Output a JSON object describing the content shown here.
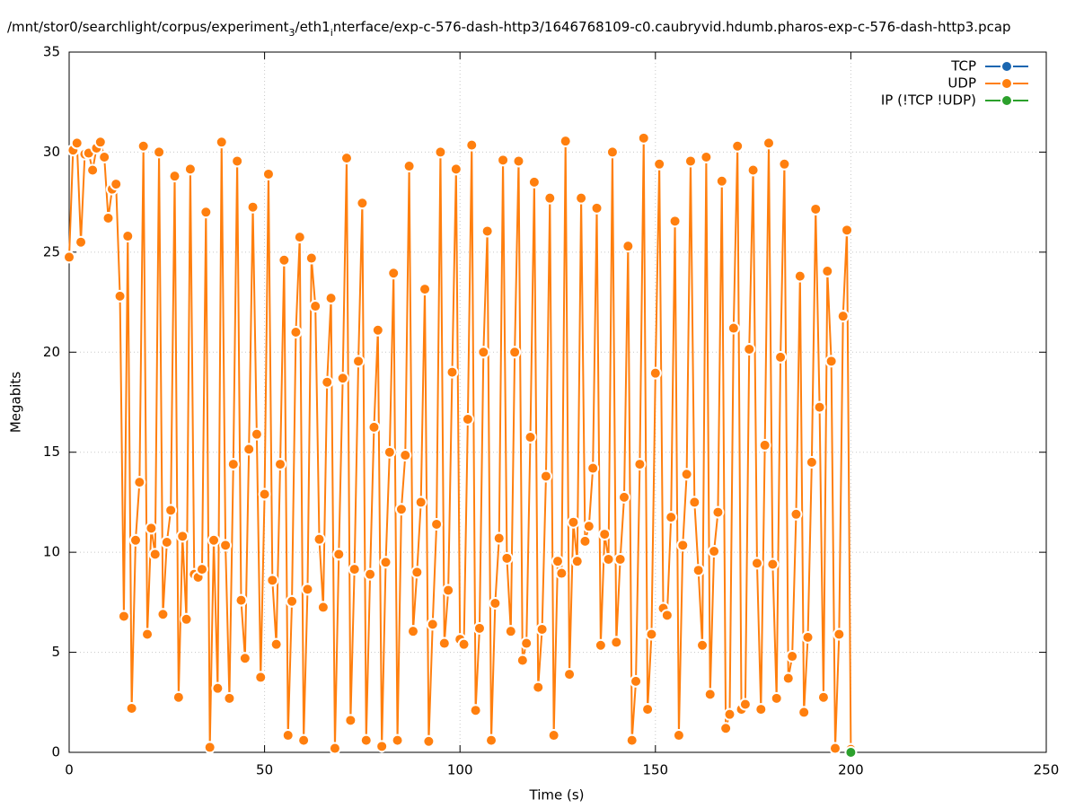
{
  "chart_data": {
    "type": "line",
    "title": [
      "/mnt/stor0/searchlight/corpus/experiment",
      "3",
      "/eth1",
      "i",
      "nterface/exp-c-576-dash-http3/1646768109-c0.caubryvid.hdumb.pharos-exp-c-576-dash-http3.pcap"
    ],
    "x_label": "Time (s)",
    "y_label": "Megabits",
    "xlim": [
      0,
      250
    ],
    "ylim": [
      0,
      35
    ],
    "xticks": [
      0,
      50,
      100,
      150,
      200,
      250
    ],
    "yticks": [
      0,
      5,
      10,
      15,
      20,
      25,
      30,
      35
    ],
    "grid": true,
    "legend": "top right",
    "series": [
      {
        "name": "TCP",
        "color": "#1a66b0",
        "x": [],
        "values": []
      },
      {
        "name": "UDP",
        "color": "#ff7f0e",
        "x": [
          0,
          1,
          2,
          3,
          4,
          5,
          6,
          7,
          8,
          9,
          10,
          11,
          12,
          13,
          14,
          15,
          16,
          17,
          18,
          19,
          20,
          21,
          22,
          23,
          24,
          25,
          26,
          27,
          28,
          29,
          30,
          31,
          32,
          33,
          34,
          35,
          36,
          37,
          38,
          39,
          40,
          41,
          42,
          43,
          44,
          45,
          46,
          47,
          48,
          49,
          50,
          51,
          52,
          53,
          54,
          55,
          56,
          57,
          58,
          59,
          60,
          61,
          62,
          63,
          64,
          65,
          66,
          67,
          68,
          69,
          70,
          71,
          72,
          73,
          74,
          75,
          76,
          77,
          78,
          79,
          80,
          81,
          82,
          83,
          84,
          85,
          86,
          87,
          88,
          89,
          90,
          91,
          92,
          93,
          94,
          95,
          96,
          97,
          98,
          99,
          100,
          101,
          102,
          103,
          104,
          105,
          106,
          107,
          108,
          109,
          110,
          111,
          112,
          113,
          114,
          115,
          116,
          117,
          118,
          119,
          120,
          121,
          122,
          123,
          124,
          125,
          126,
          127,
          128,
          129,
          130,
          131,
          132,
          133,
          134,
          135,
          136,
          137,
          138,
          139,
          140,
          141,
          142,
          143,
          144,
          145,
          146,
          147,
          148,
          149,
          150,
          151,
          152,
          153,
          154,
          155,
          156,
          157,
          158,
          159,
          160,
          161,
          162,
          163,
          164,
          165,
          166,
          167,
          168,
          169,
          170,
          171,
          172,
          173,
          174,
          175,
          176,
          177,
          178,
          179,
          180,
          181,
          182,
          183,
          184,
          185,
          186,
          187,
          188,
          189,
          190,
          191,
          192,
          193,
          194,
          195,
          196,
          197,
          198,
          199,
          200
        ],
        "values": [
          24.75,
          30.1,
          30.45,
          25.5,
          29.9,
          29.95,
          29.1,
          30.2,
          30.5,
          29.75,
          26.7,
          28.15,
          28.4,
          22.8,
          6.8,
          25.8,
          2.2,
          10.6,
          13.5,
          30.3,
          5.9,
          11.2,
          9.9,
          30.0,
          6.9,
          10.5,
          12.1,
          28.8,
          2.75,
          10.8,
          6.65,
          29.15,
          8.9,
          8.75,
          9.15,
          27.0,
          0.25,
          10.6,
          3.2,
          30.5,
          10.35,
          2.7,
          14.4,
          29.55,
          7.6,
          4.7,
          15.15,
          27.25,
          15.9,
          3.75,
          12.9,
          28.9,
          8.6,
          5.4,
          14.4,
          24.6,
          0.85,
          7.55,
          21.0,
          25.75,
          0.6,
          8.15,
          24.7,
          22.3,
          10.65,
          7.25,
          18.5,
          22.7,
          0.2,
          9.9,
          18.7,
          29.7,
          1.6,
          9.15,
          19.55,
          27.45,
          0.6,
          8.9,
          16.25,
          21.1,
          0.3,
          9.5,
          15.0,
          23.95,
          0.6,
          12.15,
          14.85,
          29.3,
          6.05,
          9.0,
          12.5,
          23.15,
          0.55,
          6.4,
          11.4,
          30.0,
          5.45,
          8.1,
          19.0,
          29.15,
          5.65,
          5.4,
          16.65,
          30.35,
          2.1,
          6.2,
          20.0,
          26.05,
          0.6,
          7.45,
          10.7,
          29.6,
          9.7,
          6.05,
          20.0,
          29.55,
          4.6,
          5.45,
          15.75,
          28.5,
          3.25,
          6.15,
          13.8,
          27.7,
          0.85,
          9.55,
          8.95,
          30.55,
          3.9,
          11.5,
          9.55,
          27.7,
          10.55,
          11.3,
          14.2,
          27.2,
          5.35,
          10.9,
          9.65,
          30.0,
          5.5,
          9.65,
          12.75,
          25.3,
          0.6,
          3.55,
          14.4,
          30.7,
          2.15,
          5.9,
          18.95,
          29.4,
          7.2,
          6.85,
          11.75,
          26.55,
          0.85,
          10.35,
          13.9,
          29.55,
          12.5,
          9.1,
          5.35,
          29.75,
          2.9,
          10.05,
          12.0,
          28.55,
          1.2,
          1.9,
          21.2,
          30.3,
          2.15,
          2.4,
          20.15,
          29.1,
          9.45,
          2.15,
          15.35,
          30.45,
          9.4,
          2.7,
          19.75,
          29.4,
          3.7,
          4.8,
          11.9,
          23.8,
          2.0,
          5.75,
          14.5,
          27.15,
          17.25,
          2.75,
          24.05,
          19.55,
          0.2,
          5.9,
          21.8,
          26.1,
          0.15
        ]
      },
      {
        "name": "IP (!TCP  !UDP)",
        "color": "#2ca02c",
        "x": [
          200
        ],
        "values": [
          0
        ]
      }
    ]
  }
}
